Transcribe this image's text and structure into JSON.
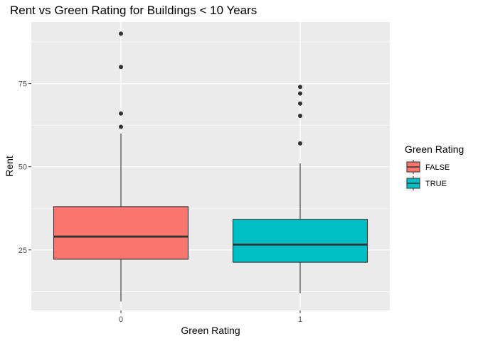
{
  "chart_data": {
    "type": "box",
    "title": "Rent vs Green Rating for Buildings < 10 Years",
    "xlabel": "Green Rating",
    "ylabel": "Rent",
    "categories": [
      "0",
      "1"
    ],
    "ylim": [
      6.8,
      93.5
    ],
    "yticks": [
      25,
      50,
      75
    ],
    "grid": true,
    "legend": {
      "title": "Green Rating",
      "position": "right",
      "entries": [
        {
          "label": "FALSE",
          "color": "#F8766D"
        },
        {
          "label": "TRUE",
          "color": "#00BFC4"
        }
      ]
    },
    "boxes": [
      {
        "category": "0",
        "group": "FALSE",
        "color": "#F8766D",
        "min": 9.5,
        "q1": 22.2,
        "median": 29.0,
        "q3": 38.0,
        "max": 60.0,
        "outliers": [
          62.0,
          66.0,
          80.0,
          90.0
        ]
      },
      {
        "category": "1",
        "group": "TRUE",
        "color": "#00BFC4",
        "min": 12.0,
        "q1": 21.3,
        "median": 26.6,
        "q3": 34.2,
        "max": 51.0,
        "outliers": [
          57.0,
          65.3,
          69.0,
          72.0,
          74.0
        ]
      }
    ]
  },
  "colors": {
    "panel_background": "#EBEBEB",
    "grid_major": "#FFFFFF",
    "grid_minor": "#F5F5F5",
    "box_outline": "#333333",
    "point": "#333333"
  }
}
